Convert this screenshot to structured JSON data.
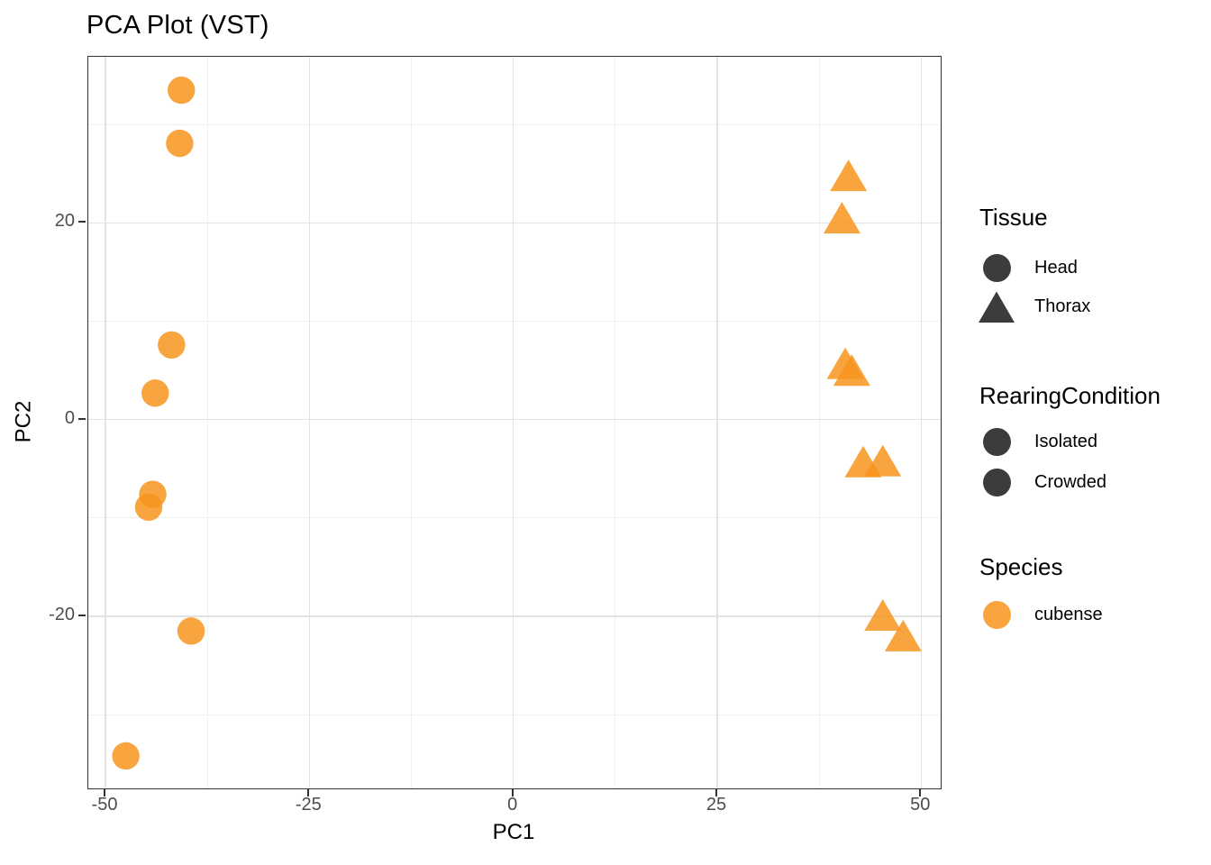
{
  "title": "PCA Plot (VST)",
  "colors": {
    "accent_orange": "#F7941D",
    "point_opacity": 0.85,
    "legend_orange": "#F9A43F",
    "dark_symbol": "#3C3C3C",
    "grid_major": "#E3E3E3",
    "grid_minor": "#F0F0F0",
    "panel_border": "#333333",
    "tick_mark": "#333333",
    "tick_label": "#4D4D4D",
    "text": "#000000"
  },
  "chart_data": {
    "type": "scatter",
    "title": "PCA Plot (VST)",
    "xlabel": "PC1",
    "ylabel": "PC2",
    "xlim": [
      -52.1,
      52.4
    ],
    "ylim": [
      -37.5,
      36.9
    ],
    "x_ticks": [
      -50,
      -25,
      0,
      25,
      50
    ],
    "y_ticks": [
      20,
      0,
      -20
    ],
    "x_minor_ticks": [
      -37.5,
      -12.5,
      12.5,
      37.5
    ],
    "y_minor_ticks": [
      30,
      10,
      -10,
      -30
    ],
    "grid": true,
    "legend_position": "right",
    "point_color": "#F7941D",
    "point_opacity": 0.85,
    "series": [
      {
        "name": "Head",
        "shape": "circle",
        "species": "cubense",
        "points": [
          [
            -40.7,
            33.5
          ],
          [
            -40.9,
            28.1
          ],
          [
            -41.9,
            7.6
          ],
          [
            -43.9,
            2.7
          ],
          [
            -44.2,
            -7.6
          ],
          [
            -44.7,
            -8.9
          ],
          [
            -39.5,
            -21.5
          ],
          [
            -47.5,
            -34.2
          ]
        ]
      },
      {
        "name": "Thorax",
        "shape": "triangle",
        "species": "cubense",
        "points": [
          [
            41.1,
            24.7
          ],
          [
            40.3,
            20.4
          ],
          [
            40.7,
            5.6
          ],
          [
            41.5,
            4.9
          ],
          [
            42.9,
            -4.4
          ],
          [
            45.3,
            -4.3
          ],
          [
            45.3,
            -20.0
          ],
          [
            47.8,
            -22.1
          ]
        ]
      }
    ]
  },
  "legend": {
    "groups": [
      {
        "title": "Tissue",
        "items": [
          {
            "label": "Head",
            "shape": "circle",
            "color": "#3C3C3C"
          },
          {
            "label": "Thorax",
            "shape": "triangle",
            "color": "#3C3C3C"
          }
        ]
      },
      {
        "title": "RearingCondition",
        "items": [
          {
            "label": "Isolated",
            "shape": "circle",
            "color": "#3C3C3C"
          },
          {
            "label": "Crowded",
            "shape": "circle",
            "color": "#3C3C3C"
          }
        ]
      },
      {
        "title": "Species",
        "items": [
          {
            "label": "cubense",
            "shape": "circle",
            "color": "#F9A43F"
          }
        ]
      }
    ]
  }
}
